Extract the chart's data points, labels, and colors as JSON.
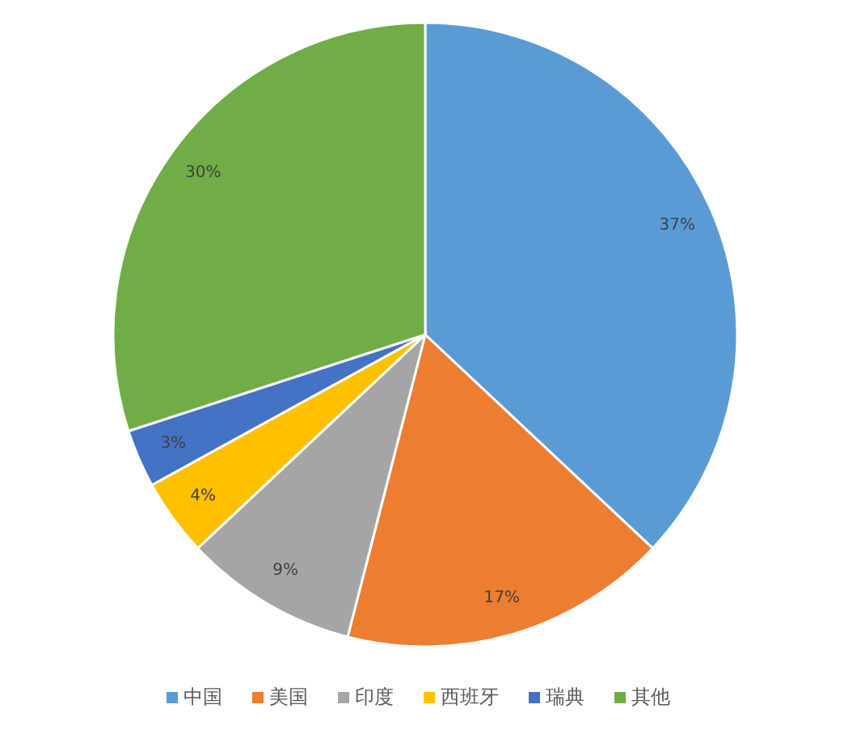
{
  "chart_data": {
    "type": "pie",
    "categories": [
      "中国",
      "美国",
      "印度",
      "西班牙",
      "瑞典",
      "其他"
    ],
    "values": [
      37,
      17,
      9,
      4,
      3,
      30
    ],
    "value_labels": [
      "37%",
      "17%",
      "9%",
      "4%",
      "3%",
      "30%"
    ],
    "colors": [
      "#5b9bd5",
      "#ed7d31",
      "#a5a5a5",
      "#ffc000",
      "#4472c4",
      "#70ad47"
    ],
    "legend": "bottom"
  }
}
